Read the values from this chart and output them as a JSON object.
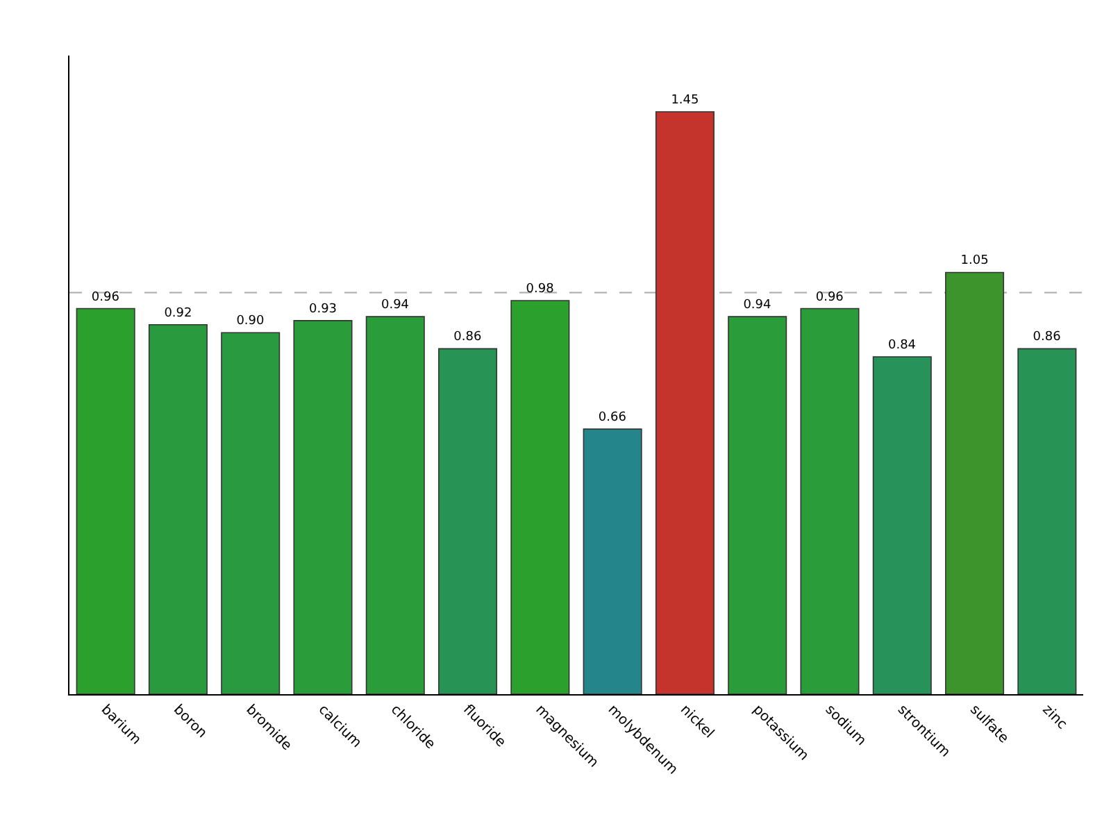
{
  "chart_data": {
    "type": "bar",
    "categories": [
      "barium",
      "boron",
      "bromide",
      "calcium",
      "chloride",
      "fluoride",
      "magnesium",
      "molybdenum",
      "nickel",
      "potassium",
      "sodium",
      "strontium",
      "sulfate",
      "zinc"
    ],
    "values": [
      0.96,
      0.92,
      0.9,
      0.93,
      0.94,
      0.86,
      0.98,
      0.66,
      1.45,
      0.94,
      0.96,
      0.84,
      1.05,
      0.86
    ],
    "colors": [
      "#2ca02c",
      "#2a9a3e",
      "#2a9a40",
      "#2a9c3a",
      "#2a9c3a",
      "#279455",
      "#2ca02c",
      "#24868a",
      "#c4342c",
      "#2a9c3a",
      "#2a9c3a",
      "#27925a",
      "#3d942c",
      "#279455"
    ],
    "value_labels": [
      "0.96",
      "0.92",
      "0.90",
      "0.93",
      "0.94",
      "0.86",
      "0.98",
      "0.66",
      "1.45",
      "0.94",
      "0.96",
      "0.84",
      "1.05",
      "0.86"
    ],
    "ylim": [
      0,
      1.59
    ],
    "ref_lines": [
      {
        "axis": "y",
        "value": 1.0,
        "color": "#aaaaaa",
        "line_style": "dashed"
      }
    ],
    "grid": false,
    "legend": false
  }
}
